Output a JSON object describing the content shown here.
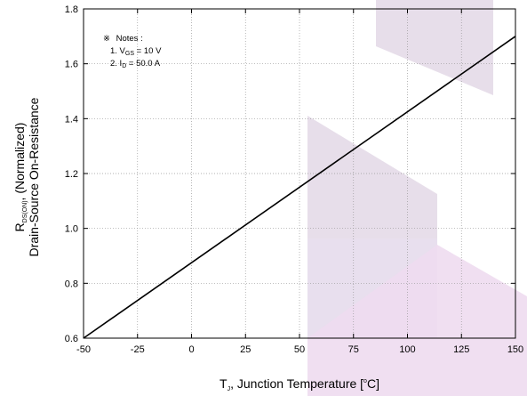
{
  "chart_data": {
    "type": "line",
    "xlabel": {
      "main_prefix": "T",
      "main_sub": "J",
      "main_rest": ", Junction Temperature [",
      "sup": "o",
      "suffix": "C]"
    },
    "ylabel": {
      "line1_prefix": "R",
      "line1_sub": "DS(ON)",
      "line1_rest": ", (Normalized)",
      "line2": "Drain-Source On-Resistance"
    },
    "xlim": [
      -50,
      150
    ],
    "ylim": [
      0.6,
      1.8
    ],
    "xticks": [
      "-50",
      "-25",
      "0",
      "25",
      "50",
      "75",
      "100",
      "125",
      "150"
    ],
    "xtick_values": [
      -50,
      -25,
      0,
      25,
      50,
      75,
      100,
      125,
      150
    ],
    "yticks": [
      "0.6",
      "0.8",
      "1.0",
      "1.2",
      "1.4",
      "1.6",
      "1.8"
    ],
    "ytick_values": [
      0.6,
      0.8,
      1.0,
      1.2,
      1.4,
      1.6,
      1.8
    ],
    "grid": true,
    "series": [
      {
        "x": [
          -50,
          150
        ],
        "y": [
          0.6,
          1.7
        ],
        "color": "#000000"
      }
    ],
    "notes": {
      "symbol": "※",
      "title": "Notes :",
      "line1_prefix": "1. V",
      "line1_sub": "GS",
      "line1_rest": " = 10 V",
      "line2_prefix": "2. I",
      "line2_sub": "D",
      "line2_rest": " = 50.0 A"
    },
    "watermark_color": "#e7dcee"
  }
}
